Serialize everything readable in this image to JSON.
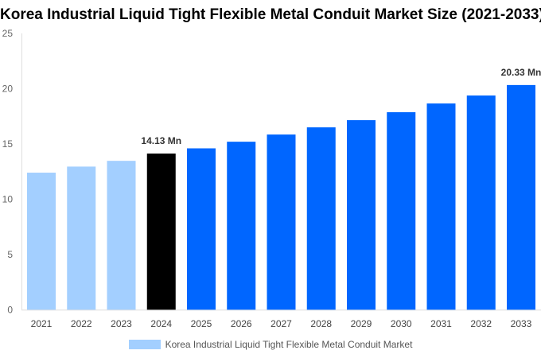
{
  "chart_data": {
    "type": "bar",
    "title": "Korea Industrial Liquid Tight Flexible Metal Conduit Market Size (2021-2033)",
    "categories": [
      "2021",
      "2022",
      "2023",
      "2024",
      "2025",
      "2026",
      "2027",
      "2028",
      "2029",
      "2030",
      "2031",
      "2032",
      "2033"
    ],
    "series": [
      {
        "name": "Korea Industrial Liquid Tight Flexible Metal Conduit Market",
        "values": [
          12.4,
          12.95,
          13.47,
          14.13,
          14.6,
          15.2,
          15.85,
          16.5,
          17.15,
          17.87,
          18.66,
          19.38,
          20.33
        ]
      }
    ],
    "bar_colors": [
      "#a3cfff",
      "#a3cfff",
      "#a3cfff",
      "#000000",
      "#0066ff",
      "#0066ff",
      "#0066ff",
      "#0066ff",
      "#0066ff",
      "#0066ff",
      "#0066ff",
      "#0066ff",
      "#0066ff"
    ],
    "data_labels": {
      "3": "14.13 Mn",
      "12": "20.33 Mn"
    },
    "yticks": [
      0,
      5,
      10,
      15,
      20,
      25
    ],
    "ylim": [
      0,
      25
    ],
    "grid": false,
    "legend": "bottom",
    "legend_color": "#a3cfff"
  }
}
